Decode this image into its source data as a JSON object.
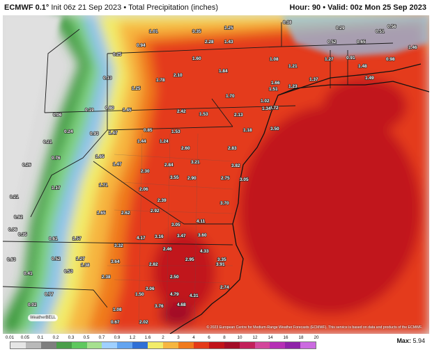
{
  "header": {
    "model": "ECMWF 0.1°",
    "init": "Init 06z 21 Sep 2023",
    "separator": "•",
    "product": "Total Precipitation (inches)",
    "hour_label": "Hour:",
    "hour": "90",
    "valid_label": "Valid:",
    "valid": "00z Mon 25 Sep 2023"
  },
  "credit": "© 2023 European Centre for Medium-Range Weather Forecasts (ECMWF). This service is based on data and products of the ECMWF.",
  "logo_text": "WeatherBELL",
  "legend": {
    "ticks": [
      "0.01",
      "0.05",
      "0.1",
      "0.2",
      "0.3",
      "0.5",
      "0.7",
      "0.9",
      "1.2",
      "1.6",
      "2",
      "3",
      "4",
      "6",
      "8",
      "10",
      "12",
      "14",
      "16",
      "18",
      "20"
    ],
    "colors": [
      "#e5e5e5",
      "#b9b9b9",
      "#7f7f7f",
      "#4a9e4a",
      "#5fc85f",
      "#a6e08f",
      "#9fd0ff",
      "#63a4f0",
      "#2f6fd6",
      "#f2ec6a",
      "#f6b640",
      "#f07a1e",
      "#e43b1a",
      "#c1141a",
      "#a30d27",
      "#c21f5a",
      "#d3479b",
      "#b52fb5",
      "#8e22a8",
      "#cb6ae0"
    ],
    "max_label": "Max:",
    "max_value": "5.94"
  },
  "map_labels": [
    {
      "t": "0.18"
    },
    {
      "t": "0.29"
    },
    {
      "t": "0.51"
    },
    {
      "t": "0.56"
    },
    {
      "t": "1.01"
    },
    {
      "t": "3.35"
    },
    {
      "t": "1.25"
    },
    {
      "t": "1.43"
    },
    {
      "t": "2.28"
    },
    {
      "t": "1.08"
    },
    {
      "t": "1.21"
    },
    {
      "t": "0.94"
    },
    {
      "t": "1.60"
    },
    {
      "t": "0.52"
    },
    {
      "t": "0.65"
    },
    {
      "t": "1.27"
    },
    {
      "t": "0.91"
    },
    {
      "t": "1.48"
    },
    {
      "t": "0.98"
    },
    {
      "t": "1.46"
    },
    {
      "t": "0.25"
    },
    {
      "t": "0.13"
    },
    {
      "t": "1.78"
    },
    {
      "t": "1.84"
    },
    {
      "t": "1.66"
    },
    {
      "t": "1.51"
    },
    {
      "t": "1.23"
    },
    {
      "t": "1.37"
    },
    {
      "t": "1.49"
    },
    {
      "t": "1.25"
    },
    {
      "t": "1.70"
    },
    {
      "t": "2.10"
    },
    {
      "t": "1.02"
    },
    {
      "t": "3.72"
    },
    {
      "t": "0.19"
    },
    {
      "t": "0.80"
    },
    {
      "t": "1.45"
    },
    {
      "t": "2.42"
    },
    {
      "t": "1.53"
    },
    {
      "t": "2.13"
    },
    {
      "t": "1.34"
    },
    {
      "t": "0.06"
    },
    {
      "t": "1.18"
    },
    {
      "t": "3.50"
    },
    {
      "t": "0.24"
    },
    {
      "t": "0.93"
    },
    {
      "t": "1.47"
    },
    {
      "t": "0.85"
    },
    {
      "t": "1.53"
    },
    {
      "t": "1.44"
    },
    {
      "t": "1.24"
    },
    {
      "t": "0.21"
    },
    {
      "t": "2.60"
    },
    {
      "t": "2.83"
    },
    {
      "t": "0.76"
    },
    {
      "t": "1.65"
    },
    {
      "t": "1.47"
    },
    {
      "t": "0.26"
    },
    {
      "t": "3.82"
    },
    {
      "t": "2.30"
    },
    {
      "t": "2.84"
    },
    {
      "t": "3.21"
    },
    {
      "t": "3.55"
    },
    {
      "t": "2.90"
    },
    {
      "t": "2.75"
    },
    {
      "t": "3.05"
    },
    {
      "t": "1.17"
    },
    {
      "t": "1.71"
    },
    {
      "t": "2.06"
    },
    {
      "t": "0.21"
    },
    {
      "t": "2.39"
    },
    {
      "t": "3.70"
    },
    {
      "t": "2.62"
    },
    {
      "t": "2.92"
    },
    {
      "t": "0.92"
    },
    {
      "t": "1.65"
    },
    {
      "t": "4.11"
    },
    {
      "t": "0.06"
    },
    {
      "t": "3.05"
    },
    {
      "t": "0.35"
    },
    {
      "t": "4.17"
    },
    {
      "t": "3.16"
    },
    {
      "t": "3.47"
    },
    {
      "t": "3.60"
    },
    {
      "t": "0.61"
    },
    {
      "t": "1.57"
    },
    {
      "t": "3.32"
    },
    {
      "t": "2.46"
    },
    {
      "t": "4.33"
    },
    {
      "t": "0.63"
    },
    {
      "t": "0.52"
    },
    {
      "t": "1.27"
    },
    {
      "t": "3.64"
    },
    {
      "t": "2.95"
    },
    {
      "t": "3.35"
    },
    {
      "t": "1.38"
    },
    {
      "t": "2.82"
    },
    {
      "t": "3.91"
    },
    {
      "t": "0.53"
    },
    {
      "t": "2.38"
    },
    {
      "t": "2.50"
    },
    {
      "t": "0.41"
    },
    {
      "t": "3.06"
    },
    {
      "t": "2.74"
    },
    {
      "t": "0.77"
    },
    {
      "t": "1.50"
    },
    {
      "t": "4.79"
    },
    {
      "t": "4.31"
    },
    {
      "t": "0.02"
    },
    {
      "t": "1.08"
    },
    {
      "t": "3.76"
    },
    {
      "t": "4.68"
    },
    {
      "t": "0.02"
    },
    {
      "t": "0.38"
    },
    {
      "t": "0.67"
    },
    {
      "t": "2.02"
    }
  ]
}
